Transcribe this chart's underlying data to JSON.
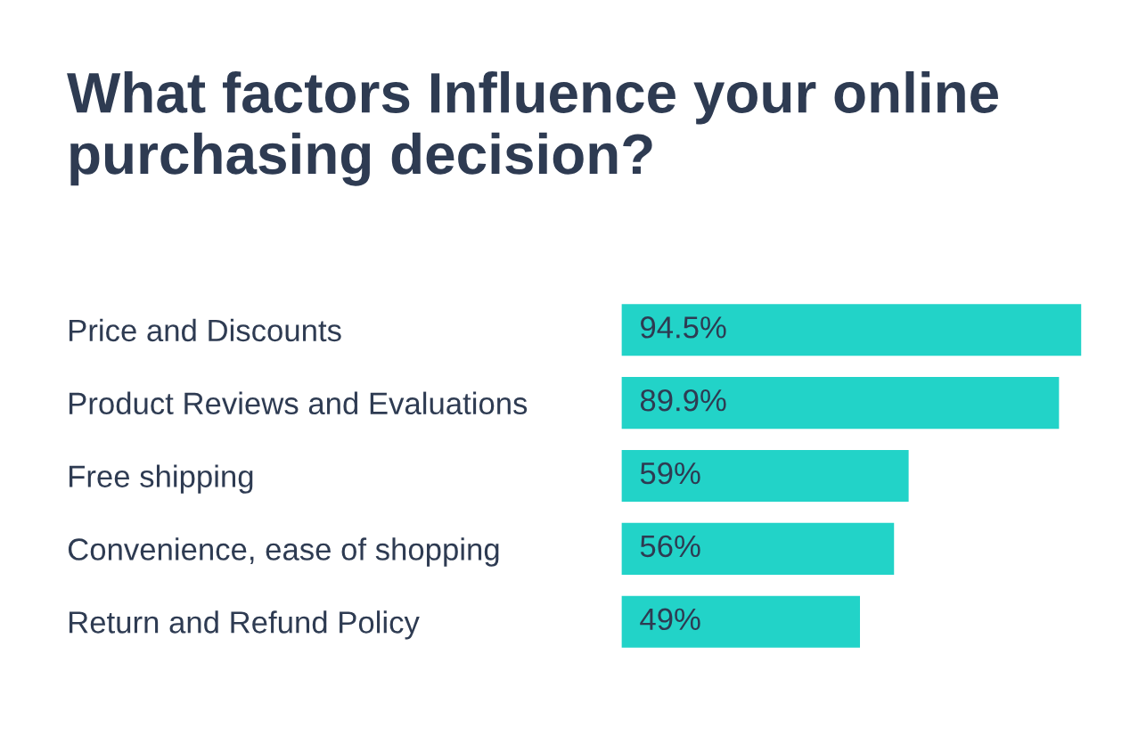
{
  "chart_data": {
    "type": "bar",
    "orientation": "horizontal",
    "title": "What factors Influence your online purchasing decision?",
    "categories": [
      "Price and Discounts",
      "Product Reviews and Evaluations",
      "Free shipping",
      "Convenience, ease of shopping",
      "Return and Refund Policy"
    ],
    "values": [
      94.5,
      89.9,
      59,
      56,
      49
    ],
    "value_labels": [
      "94.5%",
      "89.9%",
      "59%",
      "56%",
      "49%"
    ],
    "color": "#22d3c8",
    "tick_labels": false,
    "grid": false,
    "legend": false
  }
}
